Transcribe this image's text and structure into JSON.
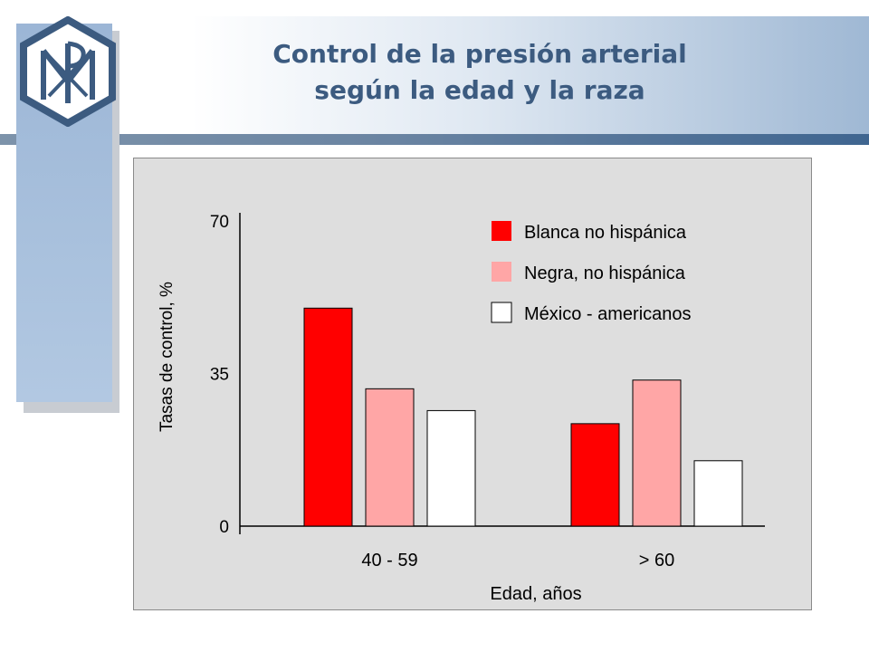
{
  "header": {
    "title_line1": "Control de la presión arterial",
    "title_line2": "según la edad y la raza"
  },
  "logo": {
    "icon": "chi-rho-hexagon-logo",
    "color": "#3c5b80"
  },
  "chart_data": {
    "type": "bar",
    "categories": [
      "40 - 59",
      "> 60"
    ],
    "series": [
      {
        "name": "Blanca no hispánica",
        "color": "#ff0000",
        "values": [
          50,
          23.5
        ]
      },
      {
        "name": "Negra, no hispánica",
        "color": "#ffa6a6",
        "values": [
          31.5,
          33.5
        ]
      },
      {
        "name": "México - americanos",
        "color": "#ffffff",
        "values": [
          26.5,
          15
        ]
      }
    ],
    "xlabel": "Edad, años",
    "ylabel": "Tasas de control, %",
    "ylim": [
      0,
      70
    ],
    "yticks": [
      "0",
      "35",
      "70"
    ],
    "grid": false,
    "legend_position": "top-right"
  }
}
